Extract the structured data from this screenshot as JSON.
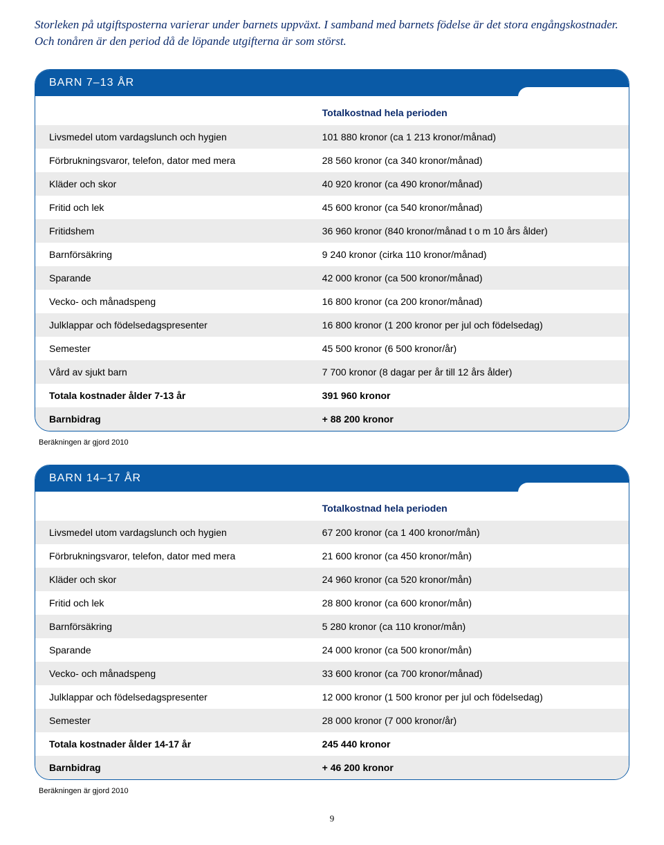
{
  "intro_text": "Storleken på utgiftsposterna varierar under barnets uppväxt. I samband med barnets födelse är det stora engångskostnader. Och tonåren är den period då de löpande utgifterna är som störst.",
  "intro_color": "#0b2a6b",
  "heading_background": "#0a5aa6",
  "row_alt_background": "#ebebeb",
  "border_color": "#0a5aa6",
  "table1": {
    "title": "BARN 7–13 ÅR",
    "header_col2": "Totalkostnad hela perioden",
    "rows": [
      {
        "label": "Livsmedel utom vardagslunch och hygien",
        "value": "101 880 kronor (ca 1 213 kronor/månad)"
      },
      {
        "label": "Förbrukningsvaror, telefon, dator med mera",
        "value": "28 560 kronor (ca 340 kronor/månad)"
      },
      {
        "label": "Kläder och skor",
        "value": "40 920 kronor (ca 490 kronor/månad)"
      },
      {
        "label": "Fritid och lek",
        "value": "45 600 kronor (ca 540 kronor/månad)"
      },
      {
        "label": "Fritidshem",
        "value": "36 960 kronor (840 kronor/månad t o m 10 års ålder)"
      },
      {
        "label": "Barnförsäkring",
        "value": "9 240 kronor (cirka 110 kronor/månad)"
      },
      {
        "label": "Sparande",
        "value": "42 000 kronor (ca 500 kronor/månad)"
      },
      {
        "label": "Vecko- och månadspeng",
        "value": "16 800 kronor (ca 200 kronor/månad)"
      },
      {
        "label": "Julklappar och födelsedagspresenter",
        "value": "16 800 kronor (1 200 kronor per jul och födelsedag)"
      },
      {
        "label": "Semester",
        "value": "45 500 kronor (6 500 kronor/år)"
      },
      {
        "label": "Vård av sjukt barn",
        "value": "7 700 kronor (8 dagar per år till 12 års ålder)"
      }
    ],
    "totals": [
      {
        "label": "Totala kostnader ålder 7-13 år",
        "value": "391 960 kronor"
      },
      {
        "label": "Barnbidrag",
        "value": "+ 88 200 kronor"
      }
    ]
  },
  "footnote1": "Beräkningen är gjord 2010",
  "table2": {
    "title": "BARN 14–17 ÅR",
    "header_col2": "Totalkostnad hela perioden",
    "rows": [
      {
        "label": "Livsmedel utom vardagslunch och hygien",
        "value": "67 200 kronor (ca 1 400 kronor/mån)"
      },
      {
        "label": "Förbrukningsvaror, telefon, dator med mera",
        "value": "21 600 kronor (ca 450 kronor/mån)"
      },
      {
        "label": "Kläder och skor",
        "value": "24 960 kronor (ca 520 kronor/mån)"
      },
      {
        "label": "Fritid och lek",
        "value": "28 800 kronor (ca 600 kronor/mån)"
      },
      {
        "label": "Barnförsäkring",
        "value": "5 280 kronor (ca 110 kronor/mån)"
      },
      {
        "label": "Sparande",
        "value": "24 000 kronor (ca 500 kronor/mån)"
      },
      {
        "label": "Vecko- och månadspeng",
        "value": "33 600 kronor (ca 700 kronor/månad)"
      },
      {
        "label": "Julklappar och födelsedagspresenter",
        "value": "12 000 kronor (1 500 kronor per jul och födelsedag)"
      },
      {
        "label": "Semester",
        "value": "28 000 kronor (7 000 kronor/år)"
      }
    ],
    "totals": [
      {
        "label": "Totala kostnader ålder 14-17 år",
        "value": "245 440 kronor"
      },
      {
        "label": "Barnbidrag",
        "value": "+ 46 200 kronor"
      }
    ]
  },
  "footnote2": "Beräkningen är gjord 2010",
  "page_number": "9"
}
